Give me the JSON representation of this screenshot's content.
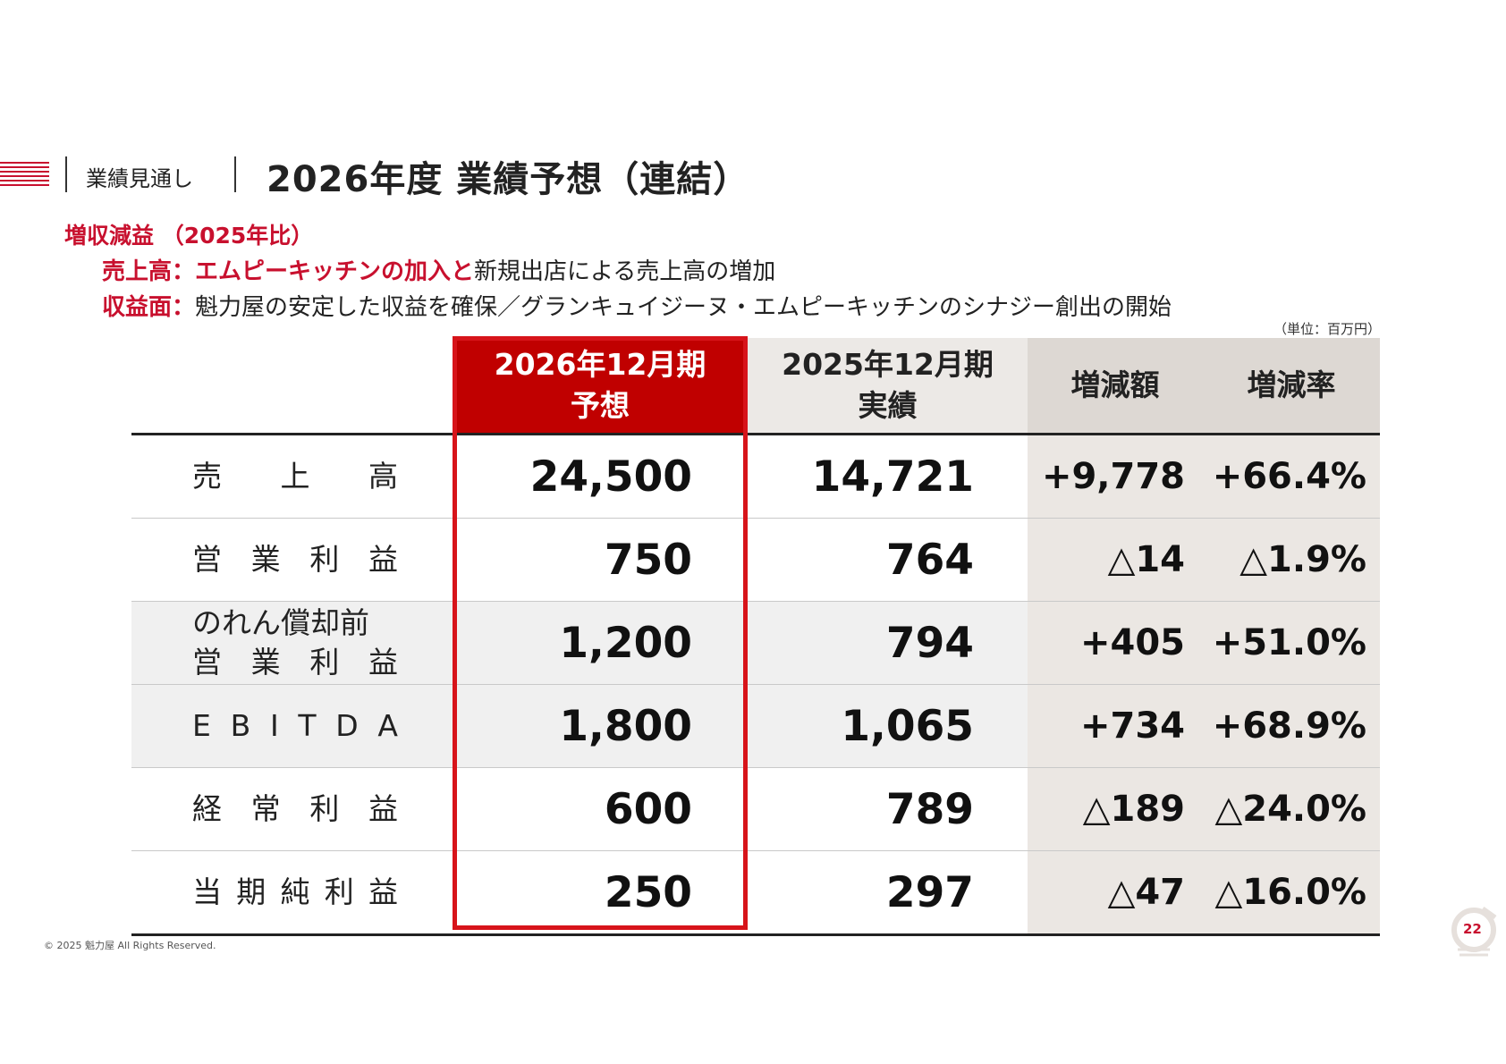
{
  "header": {
    "section": "業績見通し",
    "title": "2026年度 業績予想（連結）"
  },
  "summary": {
    "lead": "増収減益 （2025年比）",
    "sales_label": "売上高：",
    "sales_highlight": "エムピーキッチンの加入と",
    "sales_text": "新規出店による売上高の増加",
    "profit_label": "収益面：",
    "profit_text": "魁力屋の安定した収益を確保／グランキュイジーヌ・エムピーキッチンのシナジー創出の開始"
  },
  "unit": "（単位：百万円）",
  "table": {
    "head_forecast_1": "2026年12月期",
    "head_forecast_2": "予想",
    "head_actual_1": "2025年12月期",
    "head_actual_2": "実績",
    "head_diff": "増減額",
    "head_rate": "増減率",
    "rows": [
      {
        "label": "売上高",
        "chars": [
          "売",
          "上",
          "高"
        ],
        "forecast": "24,500",
        "actual": "14,721",
        "diff": "+9,778",
        "rate": "+66.4%"
      },
      {
        "label": "営業利益",
        "chars": [
          "営",
          "業",
          "利",
          "益"
        ],
        "forecast": "750",
        "actual": "764",
        "diff": "△14",
        "rate": "△1.9%"
      },
      {
        "label_1": "のれん償却前",
        "chars": [
          "営",
          "業",
          "利",
          "益"
        ],
        "forecast": "1,200",
        "actual": "794",
        "diff": "+405",
        "rate": "+51.0%"
      },
      {
        "chars": [
          "E",
          "B",
          "I",
          "T",
          "D",
          "A"
        ],
        "forecast": "1,800",
        "actual": "1,065",
        "diff": "+734",
        "rate": "+68.9%"
      },
      {
        "label": "経常利益",
        "chars": [
          "経",
          "常",
          "利",
          "益"
        ],
        "forecast": "600",
        "actual": "789",
        "diff": "△189",
        "rate": "△24.0%"
      },
      {
        "label": "当期純利益",
        "chars": [
          "当",
          "期",
          "純",
          "利",
          "益"
        ],
        "forecast": "250",
        "actual": "297",
        "diff": "△47",
        "rate": "△16.0%"
      }
    ]
  },
  "footer": {
    "copyright": "© 2025 魁力屋 All Rights Reserved.",
    "page": "22"
  },
  "colors": {
    "accent": "#c8102e",
    "header_red": "#c00000",
    "diff_bg": "#ebe7e3"
  }
}
